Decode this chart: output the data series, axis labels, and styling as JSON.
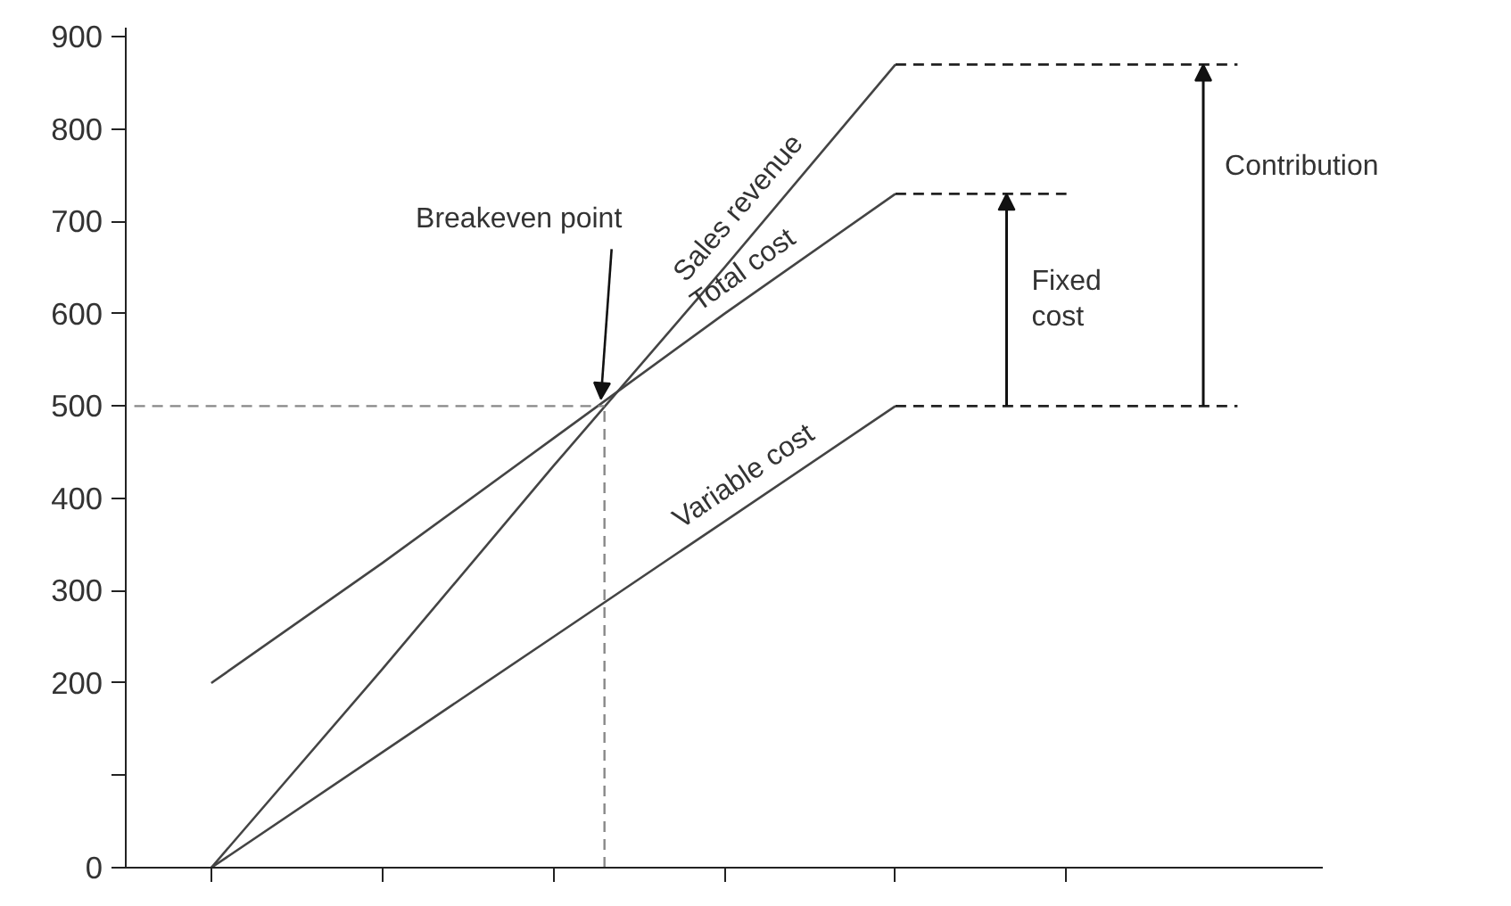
{
  "chart_data": {
    "type": "line",
    "categories": [
      null,
      null,
      null,
      null,
      null,
      null,
      null
    ],
    "series": [
      {
        "name": "Sales revenue",
        "color": "#444444",
        "values": [
          0,
          215,
          435,
          650,
          870,
          null,
          null
        ],
        "line_style": "solid"
      },
      {
        "name": "Total cost",
        "color": "#444444",
        "values": [
          200,
          330,
          465,
          600,
          730,
          null,
          null
        ],
        "line_style": "solid"
      },
      {
        "name": "Variable cost",
        "color": "#444444",
        "values": [
          0,
          125,
          250,
          375,
          500,
          null,
          null
        ],
        "line_style": "solid"
      },
      {
        "color": "#222222",
        "values": [
          null,
          null,
          null,
          null,
          870,
          870,
          870
        ],
        "line_style": "dashed"
      },
      {
        "color": "#222222",
        "values": [
          null,
          null,
          null,
          null,
          730,
          730,
          null
        ],
        "line_style": "dashed"
      },
      {
        "color": "#222222",
        "values": [
          null,
          null,
          null,
          null,
          500,
          500,
          500
        ],
        "line_style": "dashed"
      }
    ],
    "ref_lines": [
      {
        "axis": "y",
        "value": 500,
        "color": "#888888",
        "line_style": "dashed"
      }
    ],
    "annotations": [
      "Breakeven point",
      "Fixed cost",
      "Contribution"
    ],
    "ylim": [
      0,
      910
    ],
    "yticks": [
      0,
      {
        "value": 100,
        "label": null
      },
      200,
      300,
      400,
      500,
      600,
      700,
      800,
      900
    ],
    "grid": false,
    "marker": "none"
  }
}
